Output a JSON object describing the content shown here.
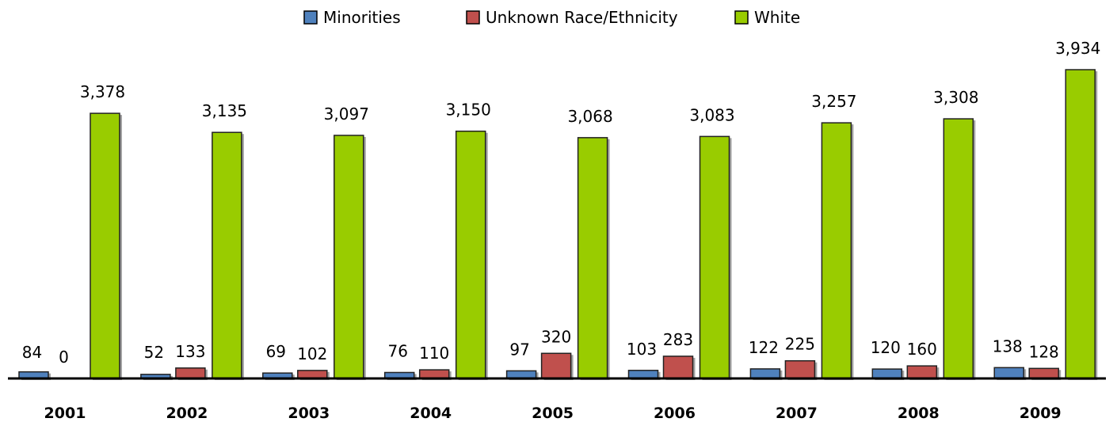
{
  "chart_data": {
    "type": "bar",
    "title": "",
    "xlabel": "",
    "ylabel": "",
    "categories": [
      "2001",
      "2002",
      "2003",
      "2004",
      "2005",
      "2006",
      "2007",
      "2008",
      "2009"
    ],
    "series": [
      {
        "name": "Minorities",
        "color": "#4F81BD",
        "values": [
          84,
          52,
          69,
          76,
          97,
          103,
          122,
          120,
          138
        ],
        "labels": [
          "84",
          "52",
          "69",
          "76",
          "97",
          "103",
          "122",
          "120",
          "138"
        ]
      },
      {
        "name": "Unknown Race/Ethnicity",
        "color": "#C0504D",
        "values": [
          0,
          133,
          102,
          110,
          320,
          283,
          225,
          160,
          128
        ],
        "labels": [
          "0",
          "133",
          "102",
          "110",
          "320",
          "283",
          "225",
          "160",
          "128"
        ]
      },
      {
        "name": "White",
        "color": "#99CC00",
        "values": [
          3378,
          3135,
          3097,
          3150,
          3068,
          3083,
          3257,
          3308,
          3934
        ],
        "labels": [
          "3,378",
          "3,135",
          "3,097",
          "3,150",
          "3,068",
          "3,083",
          "3,257",
          "3,308",
          "3,934"
        ]
      }
    ],
    "ylim": [
      0,
      4000
    ],
    "grid": false,
    "legend_position": "top-center",
    "axis_visible": false
  }
}
